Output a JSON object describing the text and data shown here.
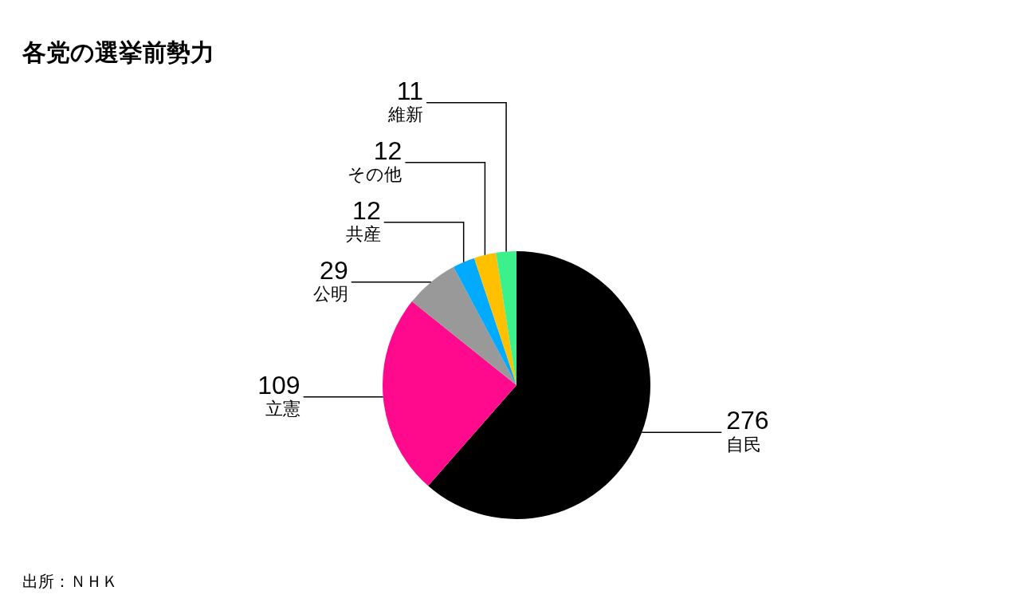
{
  "chart_data": {
    "type": "pie",
    "title": "各党の選挙前勢力",
    "categories": [
      "自民",
      "立憲",
      "公明",
      "共産",
      "その他",
      "維新"
    ],
    "values": [
      276,
      109,
      29,
      12,
      12,
      11
    ],
    "colors": [
      "#000000",
      "#ff0a8c",
      "#999999",
      "#00aaff",
      "#ffc000",
      "#3cf08c"
    ],
    "data_labels": true,
    "legend": false,
    "annotations": [
      "出所：ＮＨＫ"
    ]
  }
}
